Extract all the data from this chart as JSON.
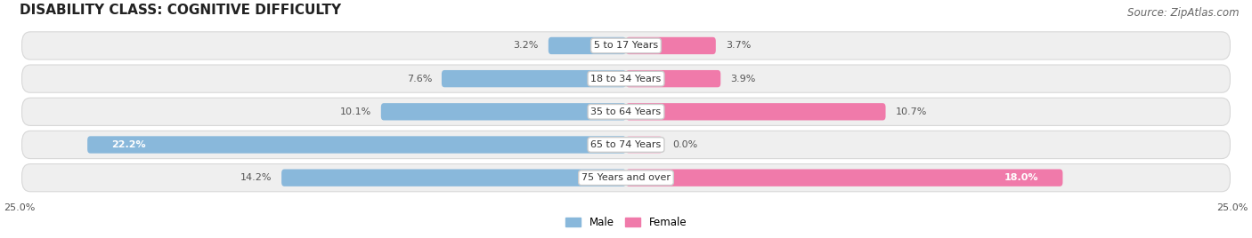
{
  "title": "DISABILITY CLASS: COGNITIVE DIFFICULTY",
  "source": "Source: ZipAtlas.com",
  "categories": [
    "5 to 17 Years",
    "18 to 34 Years",
    "35 to 64 Years",
    "65 to 74 Years",
    "75 Years and over"
  ],
  "male_values": [
    3.2,
    7.6,
    10.1,
    22.2,
    14.2
  ],
  "female_values": [
    3.7,
    3.9,
    10.7,
    0.0,
    18.0
  ],
  "male_color": "#89b8db",
  "female_color": "#f07aaa",
  "female_color_light": "#f5b8d0",
  "male_label": "Male",
  "female_label": "Female",
  "xlim": 25.0,
  "bg_color": "#ffffff",
  "row_bg_color": "#efefef",
  "row_border_color": "#d8d8d8",
  "title_fontsize": 11,
  "source_fontsize": 8.5,
  "value_fontsize": 8,
  "cat_fontsize": 8
}
